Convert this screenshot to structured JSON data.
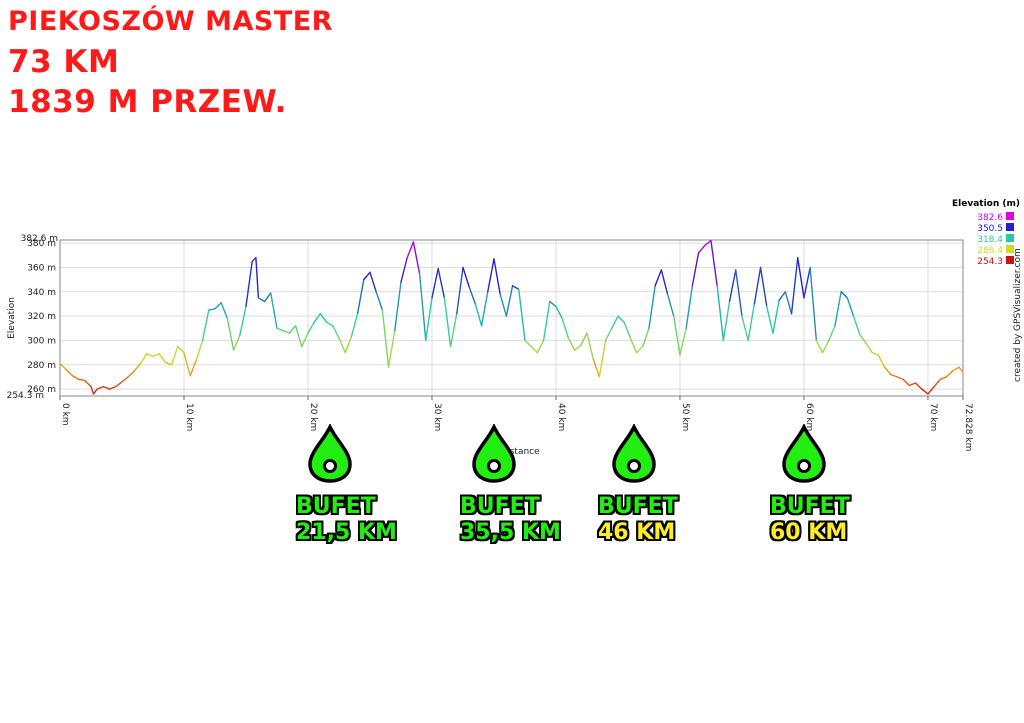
{
  "header": {
    "line1": "PIEKOSZÓW MASTER",
    "line2": "73 KM",
    "line3": "1839 M PRZEW."
  },
  "colors": {
    "title": "#ff1a1a",
    "bufet_green": "#22ee11",
    "bufet_yellow": "#ffee22",
    "drop_fill": "#22ee11"
  },
  "chart_data": {
    "type": "line",
    "xlabel": "Distance",
    "ylabel": "Elevation",
    "xlim": [
      0,
      72.828
    ],
    "ylim": [
      254.3,
      382.6
    ],
    "grid": true,
    "x_ticks": [
      "0 km",
      "10 km",
      "20 km",
      "30 km",
      "40 km",
      "50 km",
      "60 km",
      "70 km",
      "72.828 km"
    ],
    "x_tick_values": [
      0,
      10,
      20,
      30,
      40,
      50,
      60,
      70,
      72.828
    ],
    "y_ticks": [
      "260 m",
      "280 m",
      "300 m",
      "320 m",
      "340 m",
      "360 m",
      "380 m"
    ],
    "y_tick_values": [
      260,
      280,
      300,
      320,
      340,
      360,
      380
    ],
    "y_min_label": "254.3 m",
    "y_max_label": "382.6 m",
    "legend": {
      "title": "Elevation (m)",
      "placement": "top-right",
      "entries": [
        {
          "label": "382.6",
          "color": "#dd00dd"
        },
        {
          "label": "350.5",
          "color": "#2222cc"
        },
        {
          "label": "318.4",
          "color": "#22ccaa"
        },
        {
          "label": "286.4",
          "color": "#ccdd22"
        },
        {
          "label": "254.3",
          "color": "#cc1111"
        }
      ]
    },
    "credit": "created by GPSVisualizer.com",
    "points": [
      [
        0,
        281
      ],
      [
        0.5,
        276
      ],
      [
        1,
        271
      ],
      [
        1.5,
        268
      ],
      [
        2,
        267
      ],
      [
        2.5,
        262
      ],
      [
        2.7,
        256
      ],
      [
        3,
        260
      ],
      [
        3.5,
        262
      ],
      [
        4,
        260
      ],
      [
        4.5,
        262
      ],
      [
        5,
        266
      ],
      [
        5.5,
        270
      ],
      [
        6,
        275
      ],
      [
        6.5,
        281
      ],
      [
        7,
        289
      ],
      [
        7.5,
        287
      ],
      [
        8,
        289
      ],
      [
        8.5,
        282
      ],
      [
        9,
        280
      ],
      [
        9.5,
        295
      ],
      [
        10,
        290
      ],
      [
        10.5,
        271
      ],
      [
        11,
        284
      ],
      [
        11.5,
        300
      ],
      [
        12,
        325
      ],
      [
        12.5,
        326
      ],
      [
        13,
        331
      ],
      [
        13.5,
        318
      ],
      [
        14,
        292
      ],
      [
        14.5,
        304
      ],
      [
        15,
        328
      ],
      [
        15.5,
        365
      ],
      [
        15.8,
        368
      ],
      [
        16,
        335
      ],
      [
        16.5,
        332
      ],
      [
        17,
        339
      ],
      [
        17.5,
        310
      ],
      [
        18,
        308
      ],
      [
        18.5,
        306
      ],
      [
        19,
        312
      ],
      [
        19.5,
        295
      ],
      [
        20,
        306
      ],
      [
        20.5,
        315
      ],
      [
        21,
        322
      ],
      [
        21.5,
        315
      ],
      [
        22,
        312
      ],
      [
        22.5,
        302
      ],
      [
        23,
        290
      ],
      [
        23.5,
        303
      ],
      [
        24,
        322
      ],
      [
        24.5,
        350
      ],
      [
        25,
        356
      ],
      [
        25.5,
        340
      ],
      [
        26,
        325
      ],
      [
        26.5,
        278
      ],
      [
        27,
        308
      ],
      [
        27.5,
        348
      ],
      [
        28,
        368
      ],
      [
        28.5,
        381
      ],
      [
        29,
        355
      ],
      [
        29.5,
        300
      ],
      [
        30,
        335
      ],
      [
        30.5,
        359
      ],
      [
        31,
        335
      ],
      [
        31.5,
        295
      ],
      [
        32,
        322
      ],
      [
        32.5,
        360
      ],
      [
        33,
        344
      ],
      [
        33.5,
        330
      ],
      [
        34,
        312
      ],
      [
        34.5,
        340
      ],
      [
        35,
        367
      ],
      [
        35.5,
        338
      ],
      [
        36,
        320
      ],
      [
        36.5,
        345
      ],
      [
        37,
        342
      ],
      [
        37.5,
        300
      ],
      [
        38,
        295
      ],
      [
        38.5,
        290
      ],
      [
        39,
        300
      ],
      [
        39.5,
        332
      ],
      [
        40,
        328
      ],
      [
        40.5,
        318
      ],
      [
        41,
        302
      ],
      [
        41.5,
        292
      ],
      [
        42,
        296
      ],
      [
        42.5,
        306
      ],
      [
        43,
        285
      ],
      [
        43.5,
        270
      ],
      [
        44,
        300
      ],
      [
        44.5,
        310
      ],
      [
        45,
        320
      ],
      [
        45.5,
        315
      ],
      [
        46,
        302
      ],
      [
        46.5,
        290
      ],
      [
        47,
        295
      ],
      [
        47.5,
        310
      ],
      [
        48,
        345
      ],
      [
        48.5,
        358
      ],
      [
        49,
        338
      ],
      [
        49.5,
        320
      ],
      [
        50,
        288
      ],
      [
        50.5,
        310
      ],
      [
        51,
        345
      ],
      [
        51.5,
        372
      ],
      [
        52,
        378
      ],
      [
        52.5,
        382
      ],
      [
        53,
        345
      ],
      [
        53.5,
        300
      ],
      [
        54,
        332
      ],
      [
        54.5,
        358
      ],
      [
        55,
        320
      ],
      [
        55.5,
        300
      ],
      [
        56,
        330
      ],
      [
        56.5,
        360
      ],
      [
        57,
        328
      ],
      [
        57.5,
        306
      ],
      [
        58,
        333
      ],
      [
        58.5,
        340
      ],
      [
        59,
        322
      ],
      [
        59.5,
        368
      ],
      [
        60,
        335
      ],
      [
        60.5,
        360
      ],
      [
        61,
        300
      ],
      [
        61.5,
        290
      ],
      [
        62,
        300
      ],
      [
        62.5,
        312
      ],
      [
        63,
        340
      ],
      [
        63.5,
        335
      ],
      [
        64,
        320
      ],
      [
        64.5,
        305
      ],
      [
        65,
        298
      ],
      [
        65.5,
        290
      ],
      [
        66,
        288
      ],
      [
        66.5,
        278
      ],
      [
        67,
        272
      ],
      [
        67.5,
        270
      ],
      [
        68,
        268
      ],
      [
        68.5,
        263
      ],
      [
        69,
        265
      ],
      [
        69.5,
        260
      ],
      [
        70,
        256
      ],
      [
        70.5,
        262
      ],
      [
        71,
        268
      ],
      [
        71.5,
        270
      ],
      [
        72,
        275
      ],
      [
        72.5,
        278
      ],
      [
        72.828,
        274
      ]
    ]
  },
  "bufets": [
    {
      "label": "BUFET",
      "km": "21,5 KM",
      "km_color": "green"
    },
    {
      "label": "BUFET",
      "km": "35,5 KM",
      "km_color": "green"
    },
    {
      "label": "BUFET",
      "km": "46 KM",
      "km_color": "yellow"
    },
    {
      "label": "BUFET",
      "km": "60 KM",
      "km_color": "yellow"
    }
  ]
}
